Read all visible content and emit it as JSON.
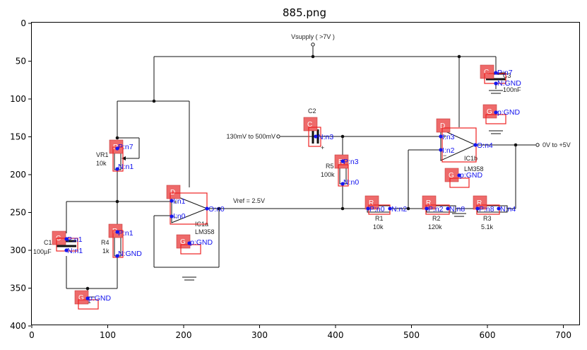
{
  "figure": {
    "title": "885.png",
    "x_ticks": [
      "0",
      "100",
      "200",
      "300",
      "400",
      "500",
      "600",
      "700"
    ],
    "y_ticks": [
      "0",
      "50",
      "100",
      "150",
      "200",
      "250",
      "300",
      "350",
      "400"
    ]
  },
  "circuit": {
    "supply_label": "Vsupply ( >7V )",
    "input_label": "130mV to 500mV",
    "output_label": "0V to +5V",
    "vref_label": "Vref = 2.5V",
    "components": {
      "c1": {
        "name": "C1",
        "value": "100µF"
      },
      "c2": {
        "name": "C2"
      },
      "c3": {
        "name": "C3",
        "value": "100nF"
      },
      "vr1": {
        "name": "VR1",
        "value": "10k"
      },
      "r4": {
        "name": "R4",
        "value": "1k"
      },
      "r5": {
        "name": "R5",
        "value": "100k"
      },
      "r1": {
        "name": "R1",
        "value": "10k"
      },
      "r2": {
        "name": "R2",
        "value": "120k"
      },
      "r3": {
        "name": "R3",
        "value": "5.1k"
      },
      "ic1a": {
        "name": "IC1a",
        "part": "LM358"
      },
      "ic1b": {
        "name": "IC1b",
        "part": "LM358"
      }
    }
  },
  "annotations": [
    {
      "id": "c1-marker",
      "letter": "C",
      "pins": [
        {
          "id": "c1-p",
          "text": "P:n1"
        },
        {
          "id": "c1-n",
          "text": "N:n1"
        }
      ]
    },
    {
      "id": "gnd-bottom",
      "letter": "G",
      "pins": [
        {
          "id": "g1",
          "text": "p:GND"
        }
      ]
    },
    {
      "id": "r4-marker",
      "letter": "R",
      "pins": [
        {
          "id": "r4-p",
          "text": "P:n1"
        },
        {
          "id": "r4-n",
          "text": "N:GND"
        }
      ]
    },
    {
      "id": "vr1-marker",
      "letter": "R",
      "pins": [
        {
          "id": "vr1-p",
          "text": "P:n7"
        },
        {
          "id": "vr1-n",
          "text": "N:n1"
        }
      ]
    },
    {
      "id": "ic1a-marker",
      "letter": "D",
      "pins": [
        {
          "id": "ic1a-in1",
          "text": "I:n1"
        },
        {
          "id": "ic1a-in0",
          "text": "I:n0"
        },
        {
          "id": "ic1a-out",
          "text": "O:n0"
        }
      ]
    },
    {
      "id": "ic1a-gnd",
      "letter": "G",
      "pins": [
        {
          "id": "g2",
          "text": "p:GND"
        }
      ]
    },
    {
      "id": "c2-marker",
      "letter": "C",
      "pins": [
        {
          "id": "c2-n",
          "text": "N:n3"
        }
      ]
    },
    {
      "id": "r5-marker",
      "letter": "R",
      "pins": [
        {
          "id": "r5-p",
          "text": "P:n3"
        },
        {
          "id": "r5-n",
          "text": "N:n0"
        }
      ]
    },
    {
      "id": "r1-marker",
      "letter": "R",
      "pins": [
        {
          "id": "r1-p",
          "text": "P:n0"
        },
        {
          "id": "r1-n",
          "text": "N:n2"
        }
      ]
    },
    {
      "id": "r2-marker",
      "letter": "R",
      "pins": [
        {
          "id": "r2-p",
          "text": "P:n2"
        },
        {
          "id": "r2-n",
          "text": "N:n8"
        }
      ]
    },
    {
      "id": "r3-marker",
      "letter": "R",
      "pins": [
        {
          "id": "r3-p",
          "text": "P:n8"
        },
        {
          "id": "r3-n",
          "text": "N:n4"
        }
      ]
    },
    {
      "id": "ic1b-marker",
      "letter": "D",
      "pins": [
        {
          "id": "ic1b-in3",
          "text": "I:n3"
        },
        {
          "id": "ic1b-in2",
          "text": "I:n2"
        },
        {
          "id": "ic1b-out",
          "text": "O:n4"
        }
      ]
    },
    {
      "id": "ic1b-gnd",
      "letter": "G",
      "pins": [
        {
          "id": "g3",
          "text": "p:GND"
        }
      ]
    },
    {
      "id": "c3-marker",
      "letter": "C",
      "pins": [
        {
          "id": "c3-p",
          "text": "P:n7"
        },
        {
          "id": "c3-n",
          "text": "N:GND"
        }
      ]
    },
    {
      "id": "gnd-top",
      "letter": "G",
      "pins": [
        {
          "id": "g4",
          "text": "p:GND"
        }
      ]
    }
  ]
}
